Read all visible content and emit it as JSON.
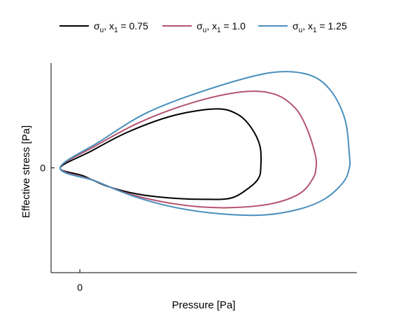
{
  "chart_data": {
    "type": "line",
    "xlabel": "Pressure [Pa]",
    "ylabel": "Effective stress [Pa]",
    "xticks": [
      {
        "value": 0,
        "label": "0"
      }
    ],
    "yticks": [
      {
        "value": 0,
        "label": "0"
      }
    ],
    "xlim": [
      -0.19,
      1.83
    ],
    "ylim": [
      -1.6,
      1.6
    ],
    "grid": false,
    "legend": "top",
    "series": [
      {
        "name": "σu, x1 = 0.75",
        "label_base": "σ",
        "label_sub": "u",
        "label_mid": ", x",
        "label_sub2": "1",
        "label_tail": " = 0.75",
        "color": "#000000",
        "x": [
          -0.13,
          0.07,
          0.32,
          0.62,
          0.9,
          1.04,
          1.13,
          1.19,
          1.195,
          1.18,
          1.12,
          1.0,
          0.82,
          0.6,
          0.38,
          0.18,
          0.02,
          -0.13
        ],
        "y": [
          0.0,
          0.25,
          0.55,
          0.8,
          0.9,
          0.82,
          0.62,
          0.33,
          0.0,
          -0.16,
          -0.3,
          -0.46,
          -0.48,
          -0.46,
          -0.4,
          -0.28,
          -0.12,
          0.0
        ]
      },
      {
        "name": "σu, x1 = 1.0",
        "label_base": "σ",
        "label_sub": "u",
        "label_mid": ", x",
        "label_sub2": "1",
        "label_tail": " = 1.0",
        "color": "#b5546f",
        "x": [
          -0.13,
          0.1,
          0.4,
          0.75,
          1.07,
          1.28,
          1.42,
          1.5,
          1.555,
          1.56,
          1.54,
          1.46,
          1.3,
          1.08,
          0.82,
          0.55,
          0.3,
          0.08,
          -0.13
        ],
        "y": [
          0.0,
          0.33,
          0.7,
          1.0,
          1.16,
          1.13,
          0.92,
          0.6,
          0.2,
          0.0,
          -0.16,
          -0.38,
          -0.53,
          -0.6,
          -0.6,
          -0.52,
          -0.38,
          -0.18,
          0.0
        ]
      },
      {
        "name": "σu, x1 = 1.25",
        "label_base": "σ",
        "label_sub": "u",
        "label_mid": ", x",
        "label_sub2": "1",
        "label_tail": " = 1.25",
        "color": "#4a8fbd",
        "x": [
          -0.13,
          0.13,
          0.45,
          0.85,
          1.25,
          1.5,
          1.65,
          1.75,
          1.78,
          1.78,
          1.74,
          1.62,
          1.45,
          1.21,
          0.92,
          0.62,
          0.35,
          0.1,
          -0.13
        ],
        "y": [
          0.0,
          0.4,
          0.85,
          1.2,
          1.45,
          1.43,
          1.2,
          0.75,
          0.2,
          0.0,
          -0.22,
          -0.47,
          -0.63,
          -0.72,
          -0.7,
          -0.6,
          -0.43,
          -0.2,
          0.0
        ]
      }
    ]
  }
}
